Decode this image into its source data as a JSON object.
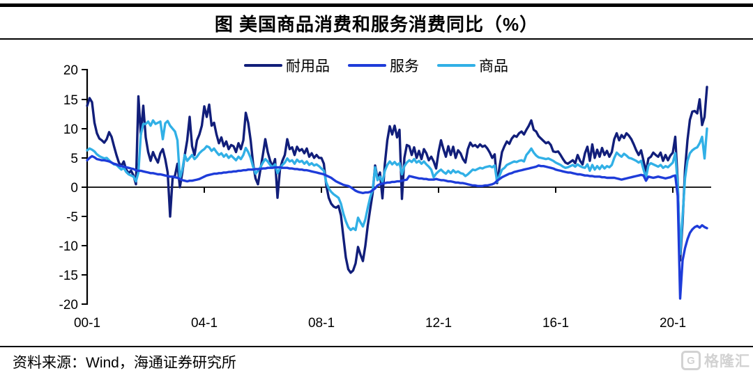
{
  "title": "图  美国商品消费和服务消费同比（%）",
  "legend": {
    "items": [
      {
        "label": "耐用品",
        "color": "#111e7a"
      },
      {
        "label": "服务",
        "color": "#1e3cd9"
      },
      {
        "label": "商品",
        "color": "#31b0e6"
      }
    ]
  },
  "y_axis": {
    "labels": [
      "20",
      "15",
      "10",
      "5",
      "0",
      "-5",
      "-10",
      "-15",
      "-20"
    ]
  },
  "x_axis": {
    "labels": [
      "00-1",
      "04-1",
      "08-1",
      "12-1",
      "16-1",
      "20-1"
    ]
  },
  "source": "资料来源：Wind，海通证券研究所",
  "logo": {
    "letter": "G",
    "text": "格隆汇"
  },
  "chart_data": {
    "type": "line",
    "title": "图 美国商品消费和服务消费同比（%）",
    "x_start": "2000-01",
    "x_end": "2021-03",
    "x_interval": "monthly",
    "x_tick_labels": [
      "00-1",
      "04-1",
      "08-1",
      "12-1",
      "16-1",
      "20-1"
    ],
    "x_tick_positions_months": [
      0,
      48,
      96,
      144,
      192,
      240
    ],
    "ylim": [
      -20,
      20
    ],
    "y_ticks": [
      20,
      15,
      10,
      5,
      0,
      -5,
      -10,
      -15,
      -20
    ],
    "grid": false,
    "legend_position": "top",
    "draw_order": [
      0,
      2,
      1
    ],
    "series": [
      {
        "name": "耐用品",
        "color": "#111e7a",
        "values": [
          13.9,
          15.2,
          14.5,
          11.0,
          9.2,
          8.3,
          8.0,
          7.6,
          8.2,
          9.4,
          8.6,
          7.0,
          5.5,
          4.2,
          3.6,
          4.4,
          3.0,
          2.4,
          2.8,
          2.0,
          0.5,
          15.5,
          9.0,
          13.9,
          8.5,
          6.0,
          4.5,
          6.0,
          5.0,
          4.2,
          5.8,
          6.5,
          4.8,
          2.5,
          -5.0,
          1.5,
          2.0,
          4.0,
          0.0,
          2.5,
          5.5,
          8.0,
          12.0,
          7.0,
          5.5,
          8.0,
          9.0,
          10.5,
          13.8,
          12.0,
          14.1,
          10.5,
          11.0,
          9.0,
          7.5,
          8.5,
          7.0,
          7.8,
          6.5,
          7.2,
          7.0,
          6.0,
          7.5,
          6.5,
          8.0,
          12.7,
          11.0,
          8.0,
          4.0,
          1.5,
          0.5,
          3.0,
          5.5,
          8.2,
          6.0,
          4.5,
          3.5,
          4.8,
          -1.8,
          3.0,
          4.5,
          5.5,
          8.2,
          6.5,
          6.8,
          5.5,
          6.9,
          6.2,
          6.5,
          5.8,
          6.6,
          5.2,
          5.8,
          5.0,
          5.5,
          5.0,
          5.0,
          4.0,
          0.3,
          -1.8,
          -2.8,
          -3.3,
          -3.5,
          -3.2,
          -4.8,
          -8.5,
          -12.0,
          -14.0,
          -14.6,
          -14.2,
          -13.0,
          -10.2,
          -11.5,
          -12.6,
          -10.0,
          -6.5,
          -3.7,
          -1.0,
          3.7,
          1.5,
          2.5,
          -1.9,
          4.0,
          8.0,
          10.4,
          9.0,
          10.5,
          8.5,
          9.8,
          -2.0,
          5.0,
          7.2,
          7.0,
          5.5,
          6.8,
          5.0,
          6.2,
          4.8,
          6.5,
          5.8,
          4.6,
          5.2,
          4.4,
          3.2,
          6.0,
          8.0,
          6.5,
          5.2,
          7.0,
          5.5,
          6.9,
          5.0,
          6.3,
          5.8,
          4.8,
          4.2,
          6.5,
          7.6,
          7.0,
          7.2,
          6.8,
          7.3,
          6.9,
          7.1,
          6.6,
          5.9,
          5.0,
          5.6,
          0.7,
          3.5,
          6.0,
          7.0,
          7.8,
          7.4,
          8.3,
          8.8,
          8.6,
          9.2,
          9.5,
          9.0,
          9.8,
          10.5,
          11.4,
          9.8,
          9.5,
          8.7,
          8.3,
          7.9,
          7.5,
          7.7,
          7.2,
          6.1,
          6.0,
          6.1,
          5.5,
          4.8,
          4.2,
          4.0,
          4.3,
          4.6,
          4.1,
          5.5,
          4.5,
          3.9,
          5.8,
          6.9,
          4.5,
          7.3,
          5.0,
          6.4,
          5.2,
          6.7,
          5.5,
          6.2,
          5.2,
          6.0,
          8.2,
          9.2,
          8.0,
          8.9,
          8.4,
          9.2,
          8.8,
          8.2,
          7.3,
          6.3,
          5.5,
          6.3,
          4.5,
          2.6,
          4.9,
          5.2,
          5.9,
          5.5,
          5.2,
          5.9,
          4.5,
          5.5,
          4.6,
          5.4,
          5.9,
          8.6,
          1.0,
          -12.5,
          -6.0,
          3.0,
          8.0,
          11.5,
          12.9,
          13.0,
          12.6,
          15.0,
          10.6,
          12.0,
          17.1
        ]
      },
      {
        "name": "服务",
        "color": "#1e3cd9",
        "values": [
          4.6,
          5.0,
          5.3,
          5.1,
          4.8,
          4.7,
          4.6,
          4.6,
          4.5,
          4.4,
          4.2,
          4.0,
          3.9,
          3.7,
          3.6,
          3.5,
          3.4,
          3.3,
          3.2,
          3.1,
          2.9,
          2.8,
          2.8,
          2.7,
          2.6,
          2.5,
          2.4,
          2.4,
          2.3,
          2.2,
          2.2,
          2.1,
          2.0,
          1.9,
          1.8,
          1.8,
          1.7,
          1.6,
          1.4,
          1.2,
          1.1,
          1.0,
          1.1,
          1.1,
          1.2,
          1.3,
          1.4,
          1.6,
          1.8,
          2.0,
          2.1,
          2.2,
          2.3,
          2.3,
          2.4,
          2.4,
          2.5,
          2.5,
          2.6,
          2.6,
          2.7,
          2.7,
          2.8,
          2.8,
          2.9,
          2.9,
          3.0,
          3.0,
          3.0,
          3.1,
          3.1,
          3.1,
          3.2,
          3.2,
          3.3,
          3.3,
          3.3,
          3.4,
          3.4,
          3.4,
          3.3,
          3.3,
          3.3,
          3.2,
          3.2,
          3.1,
          3.1,
          3.0,
          3.0,
          2.9,
          2.9,
          2.8,
          2.7,
          2.6,
          2.5,
          2.4,
          2.3,
          2.2,
          2.0,
          1.8,
          1.6,
          1.3,
          1.0,
          0.8,
          0.6,
          0.4,
          0.3,
          0.2,
          0.0,
          -0.3,
          -0.6,
          -0.8,
          -0.9,
          -1.0,
          -0.9,
          -0.9,
          -0.8,
          -0.5,
          -0.2,
          0.3,
          0.5,
          0.6,
          0.7,
          0.8,
          0.8,
          0.9,
          0.9,
          1.0,
          1.0,
          1.1,
          1.2,
          1.3,
          1.9,
          1.8,
          1.7,
          1.6,
          1.5,
          1.5,
          1.4,
          1.4,
          1.3,
          1.3,
          1.3,
          1.4,
          1.3,
          1.2,
          1.2,
          1.1,
          1.0,
          1.0,
          0.9,
          0.8,
          0.8,
          0.7,
          0.7,
          0.6,
          0.5,
          0.4,
          0.3,
          0.3,
          0.2,
          0.2,
          0.2,
          0.3,
          0.3,
          0.4,
          0.5,
          0.7,
          1.1,
          1.4,
          1.7,
          1.9,
          2.1,
          2.3,
          2.4,
          2.6,
          2.7,
          2.8,
          2.9,
          3.0,
          3.1,
          3.2,
          3.3,
          3.4,
          3.5,
          3.7,
          3.6,
          3.6,
          3.5,
          3.4,
          3.3,
          3.2,
          3.0,
          2.9,
          2.8,
          2.7,
          2.6,
          2.5,
          2.5,
          2.4,
          2.3,
          2.2,
          2.2,
          2.1,
          2.0,
          2.0,
          1.9,
          1.9,
          1.8,
          1.8,
          1.8,
          1.7,
          1.7,
          1.6,
          1.6,
          1.6,
          1.6,
          1.5,
          1.4,
          1.3,
          1.4,
          1.5,
          1.6,
          1.7,
          1.8,
          1.9,
          2.0,
          2.1,
          2.0,
          1.1,
          1.8,
          1.7,
          1.6,
          1.7,
          1.8,
          1.7,
          1.6,
          1.5,
          1.6,
          1.7,
          1.9,
          2.0,
          -1.5,
          -19.0,
          -12.5,
          -10.4,
          -8.9,
          -7.8,
          -7.2,
          -6.8,
          -6.6,
          -6.9,
          -6.5,
          -6.8,
          -7.0
        ]
      },
      {
        "name": "商品",
        "color": "#31b0e6",
        "values": [
          6.3,
          6.6,
          6.4,
          6.1,
          5.6,
          5.3,
          5.1,
          4.9,
          5.0,
          4.6,
          4.2,
          3.9,
          3.8,
          3.4,
          3.0,
          3.3,
          2.6,
          2.2,
          2.0,
          1.8,
          1.0,
          2.5,
          9.0,
          10.8,
          10.8,
          11.2,
          10.5,
          11.4,
          10.8,
          11.0,
          11.2,
          8.2,
          10.9,
          11.3,
          10.5,
          10.0,
          9.5,
          8.0,
          1.5,
          3.0,
          5.5,
          4.5,
          5.0,
          5.5,
          4.8,
          5.2,
          5.8,
          6.2,
          6.5,
          7.0,
          6.8,
          6.2,
          6.6,
          6.0,
          5.5,
          5.8,
          5.2,
          5.6,
          5.0,
          5.4,
          5.0,
          4.6,
          5.2,
          4.8,
          5.5,
          6.7,
          6.0,
          5.0,
          3.5,
          2.3,
          2.8,
          3.4,
          4.2,
          4.8,
          4.4,
          3.8,
          3.4,
          3.9,
          2.4,
          3.2,
          3.8,
          4.2,
          4.9,
          4.4,
          4.6,
          4.0,
          4.7,
          4.3,
          4.5,
          4.0,
          4.4,
          3.8,
          4.1,
          3.7,
          3.9,
          3.6,
          3.2,
          2.8,
          0.8,
          -0.2,
          -0.8,
          -1.2,
          -1.5,
          -1.8,
          -2.8,
          -4.5,
          -5.8,
          -6.8,
          -7.3,
          -7.0,
          -7.3,
          -5.2,
          -6.0,
          -6.7,
          -5.5,
          -3.5,
          -1.7,
          -0.5,
          3.4,
          1.2,
          1.8,
          0.9,
          2.8,
          3.8,
          4.4,
          3.9,
          4.3,
          3.8,
          4.1,
          2.2,
          3.6,
          4.2,
          4.6,
          4.3,
          4.8,
          4.2,
          4.5,
          4.0,
          4.4,
          3.9,
          3.5,
          3.0,
          1.7,
          2.3,
          2.7,
          3.0,
          2.6,
          2.3,
          2.8,
          2.4,
          2.9,
          2.5,
          2.7,
          2.4,
          2.3,
          1.9,
          2.2,
          2.6,
          3.0,
          2.9,
          3.1,
          3.3,
          3.2,
          3.4,
          3.5,
          3.6,
          3.4,
          3.7,
          0.9,
          2.0,
          3.0,
          3.3,
          3.8,
          4.0,
          4.2,
          4.4,
          4.3,
          4.5,
          4.6,
          4.4,
          5.5,
          6.0,
          6.6,
          5.9,
          5.4,
          5.1,
          5.0,
          4.9,
          4.8,
          4.9,
          4.7,
          4.5,
          4.2,
          4.0,
          3.8,
          3.5,
          3.3,
          3.4,
          3.6,
          3.8,
          3.5,
          3.9,
          3.6,
          3.4,
          3.3,
          3.9,
          2.8,
          3.8,
          3.0,
          3.6,
          3.1,
          3.7,
          3.2,
          3.6,
          3.4,
          3.8,
          5.0,
          5.9,
          5.5,
          5.2,
          5.7,
          5.4,
          5.0,
          4.9,
          4.7,
          4.5,
          4.2,
          4.5,
          3.0,
          1.6,
          3.7,
          4.1,
          3.9,
          3.7,
          3.5,
          3.8,
          3.3,
          3.6,
          3.4,
          3.8,
          4.2,
          5.8,
          0.5,
          -11.4,
          -5.0,
          1.5,
          4.5,
          5.8,
          6.3,
          6.6,
          6.8,
          7.5,
          8.6,
          4.9,
          10.0
        ]
      }
    ]
  }
}
